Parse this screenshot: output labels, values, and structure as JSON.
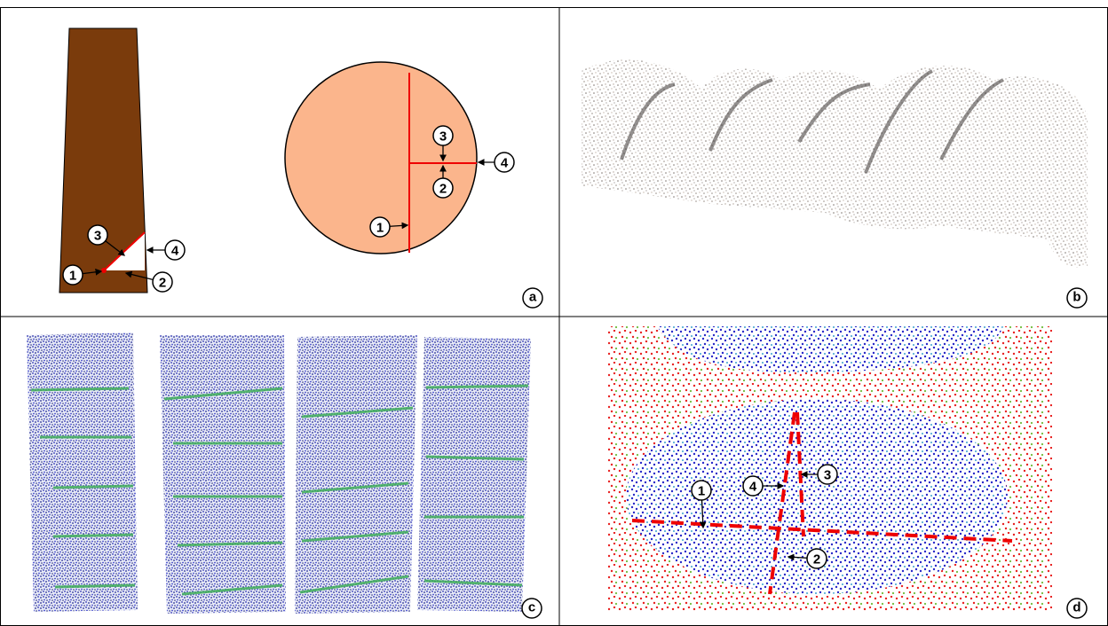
{
  "panels": [
    {
      "label": "a",
      "trapezoid_callouts": [
        "1",
        "2",
        "3",
        "4"
      ],
      "circle_callouts": [
        "1",
        "2",
        "3",
        "4"
      ]
    },
    {
      "label": "b"
    },
    {
      "label": "c"
    },
    {
      "label": "d",
      "callouts": [
        "1",
        "2",
        "3",
        "4"
      ]
    }
  ]
}
